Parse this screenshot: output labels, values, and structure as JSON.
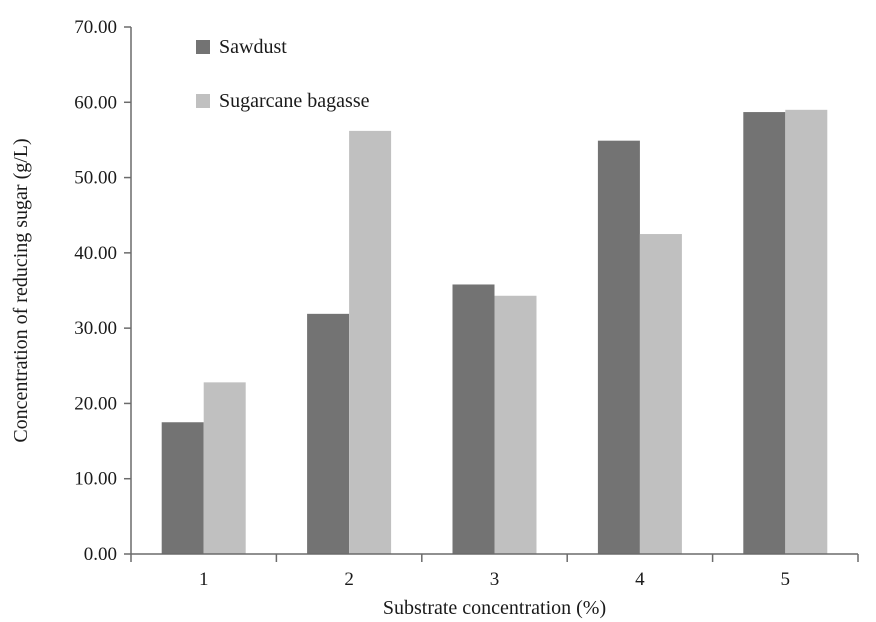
{
  "chart_data": {
    "type": "bar",
    "categories": [
      "1",
      "2",
      "3",
      "4",
      "5"
    ],
    "series": [
      {
        "name": "Sawdust",
        "color": "#737373",
        "values": [
          17.5,
          31.9,
          35.8,
          54.9,
          58.7
        ]
      },
      {
        "name": "Sugarcane bagasse",
        "color": "#c0c0c0",
        "values": [
          22.8,
          56.2,
          34.3,
          42.5,
          59.0
        ]
      }
    ],
    "xlabel": "Substrate concentration (%)",
    "ylabel": "Concentration of reducing sugar (g/L)",
    "ylim": [
      0,
      70
    ],
    "yticks": [
      "0.00",
      "10.00",
      "20.00",
      "30.00",
      "40.00",
      "50.00",
      "60.00",
      "70.00"
    ],
    "grid": false,
    "legend_position": "top-left"
  }
}
